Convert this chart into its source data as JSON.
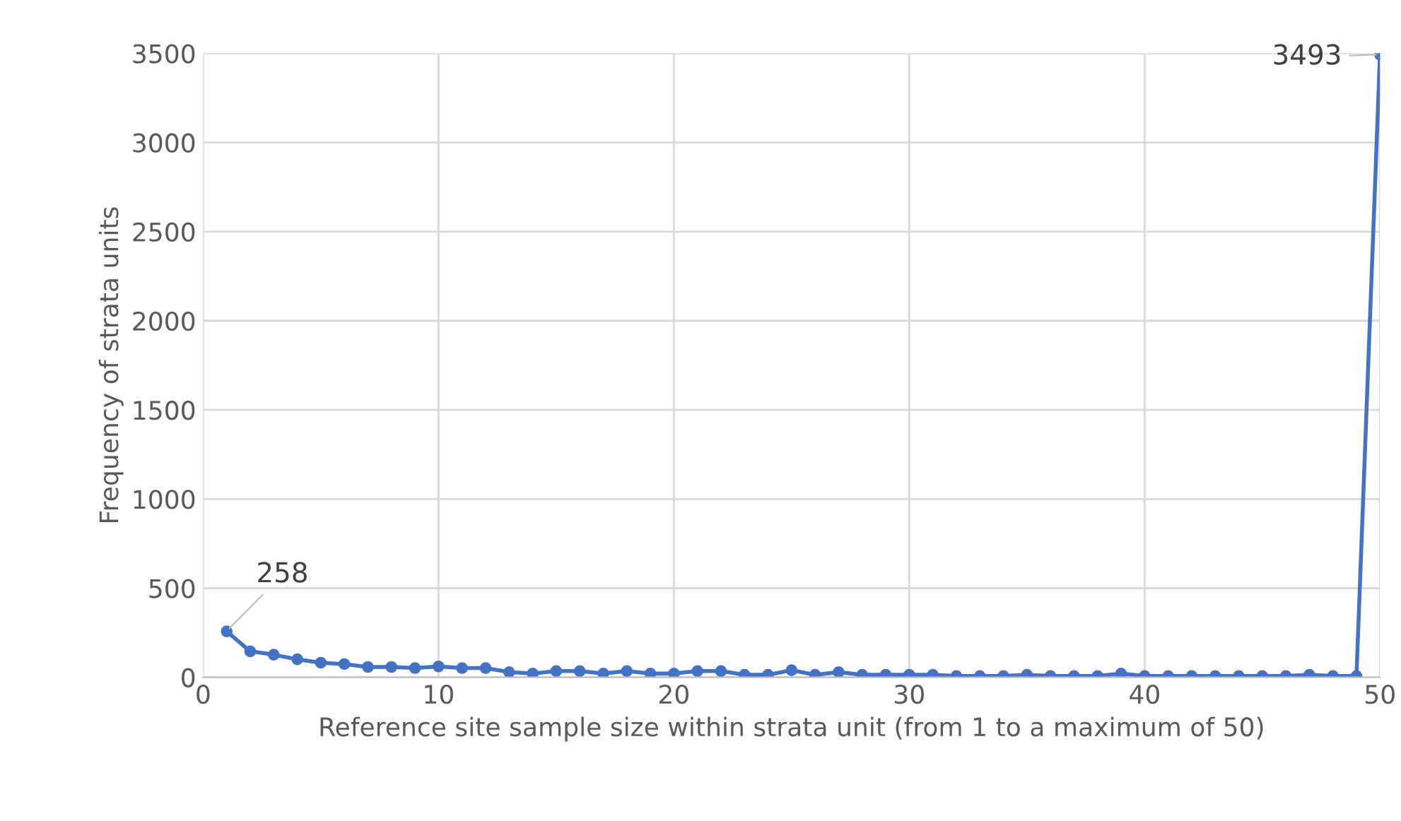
{
  "chart_data": {
    "type": "line",
    "xlabel": "Reference site sample size within strata unit (from 1 to a maximum of 50)",
    "ylabel": "Frequency of strata units",
    "x": [
      1,
      2,
      3,
      4,
      5,
      6,
      7,
      8,
      9,
      10,
      11,
      12,
      13,
      14,
      15,
      16,
      17,
      18,
      19,
      20,
      21,
      22,
      23,
      24,
      25,
      26,
      27,
      28,
      29,
      30,
      31,
      32,
      33,
      34,
      35,
      36,
      37,
      38,
      39,
      40,
      41,
      42,
      43,
      44,
      45,
      46,
      47,
      48,
      49,
      50
    ],
    "series": [
      {
        "color": "#4472c4",
        "values": [
          258,
          146,
          127,
          101,
          82,
          74,
          58,
          58,
          52,
          61,
          52,
          52,
          29,
          21,
          35,
          35,
          21,
          35,
          21,
          21,
          35,
          35,
          14,
          14,
          40,
          14,
          29,
          14,
          14,
          14,
          14,
          7,
          7,
          7,
          14,
          7,
          7,
          7,
          21,
          7,
          7,
          7,
          7,
          7,
          7,
          7,
          14,
          7,
          7,
          3493
        ]
      }
    ],
    "annotations": [
      {
        "text": "258",
        "x": 1,
        "y": 258
      },
      {
        "text": "3493",
        "x": 50,
        "y": 3493
      }
    ],
    "xlim": [
      0,
      50
    ],
    "xticks": [
      0,
      10,
      20,
      30,
      40,
      50
    ],
    "ylim": [
      0,
      3500
    ],
    "yticks": [
      0,
      500,
      1000,
      1500,
      2000,
      2500,
      3000,
      3500
    ],
    "grid": true,
    "marker": "circle",
    "line_style": "solid"
  }
}
